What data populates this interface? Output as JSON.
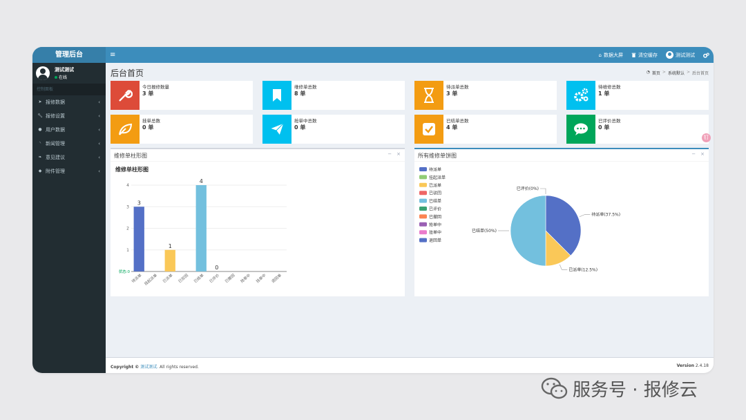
{
  "app": {
    "logo": "管理后台",
    "menu_toggle": "≡"
  },
  "topnav": {
    "items": [
      {
        "icon": "home-icon",
        "label": "数据大屏"
      },
      {
        "icon": "trash-icon",
        "label": "清空缓存"
      },
      {
        "icon": "user-avatar-icon",
        "label": "测试测试"
      },
      {
        "icon": "gears-icon",
        "label": ""
      }
    ]
  },
  "sidebar": {
    "user": {
      "name": "测试测试",
      "status": "在线"
    },
    "nav_header": "控制面板",
    "items": [
      {
        "icon": "paper-plane-icon",
        "label": "报修数据"
      },
      {
        "icon": "wrench-icon",
        "label": "报修设置"
      },
      {
        "icon": "user-icon",
        "label": "用户数据"
      },
      {
        "icon": "rss-icon",
        "label": "新闻管理"
      },
      {
        "icon": "leaf-icon",
        "label": "意见建议"
      },
      {
        "icon": "tag-icon",
        "label": "附件管理"
      }
    ]
  },
  "page": {
    "title": "后台首页",
    "breadcrumb": [
      "首页",
      "系统默认",
      "后台首页"
    ]
  },
  "stats": [
    {
      "label": "今日报修数量",
      "value": "3 单",
      "color": "#dd4b39",
      "icon": "wrench-icon"
    },
    {
      "label": "维修单总数",
      "value": "8 单",
      "color": "#00c0ef",
      "icon": "bookmark-icon"
    },
    {
      "label": "待派单总数",
      "value": "3 单",
      "color": "#f39c12",
      "icon": "hourglass-icon"
    },
    {
      "label": "待维修总数",
      "value": "1 单",
      "color": "#00c0ef",
      "icon": "gears-icon"
    },
    {
      "label": "挂单总数",
      "value": "0 单",
      "color": "#f39c12",
      "icon": "leaf-icon"
    },
    {
      "label": "抢单中总数",
      "value": "0 单",
      "color": "#00c0ef",
      "icon": "paper-plane-icon"
    },
    {
      "label": "已结单总数",
      "value": "4 单",
      "color": "#f39c12",
      "icon": "check-square-icon"
    },
    {
      "label": "已评价总数",
      "value": "0 单",
      "color": "#00a65a",
      "icon": "comment-icon"
    }
  ],
  "bar_panel": {
    "title": "维修单柱形图",
    "tool_min": "−",
    "tool_close": "×"
  },
  "pie_panel": {
    "title": "所有维修单饼图",
    "tool_min": "−",
    "tool_close": "×"
  },
  "chart_data": [
    {
      "type": "bar",
      "title": "维修单柱形图",
      "xlabel": "",
      "ylabel": "",
      "categories": [
        "待派单",
        "挂起派单",
        "已派单",
        "已驳回",
        "已结单",
        "已评价",
        "已撤回",
        "抢单中",
        "挂单中",
        "退回单"
      ],
      "values": [
        3,
        0,
        1,
        0,
        4,
        0,
        0,
        0,
        0,
        0
      ],
      "colors": [
        "#5470c6",
        "#91cc75",
        "#fac858",
        "#ee6666",
        "#73c0de",
        "#3ba272",
        "#fc8452",
        "#9a60b4",
        "#ea7ccc",
        "#5470c6"
      ],
      "value_labels": [
        "3",
        "",
        "1",
        "",
        "4",
        "0",
        "",
        "",
        "",
        ""
      ],
      "axis_corner_label": "状态:0",
      "ylim": [
        0,
        4
      ],
      "yticks": [
        0,
        1,
        2,
        3,
        4
      ],
      "grid": true
    },
    {
      "type": "pie",
      "title": "所有维修单饼图",
      "legend": [
        "待派单",
        "挂起派单",
        "已派单",
        "已驳回",
        "已结单",
        "已评价",
        "已撤回",
        "抢单中",
        "挂单中",
        "退回单"
      ],
      "legend_colors": [
        "#5470c6",
        "#91cc75",
        "#fac858",
        "#ee6666",
        "#73c0de",
        "#3ba272",
        "#fc8452",
        "#9a60b4",
        "#ea7ccc",
        "#5470c6"
      ],
      "legend_position": "top-left",
      "slices": [
        {
          "name": "待派单",
          "value": 37.5,
          "label": "待派单(37.5%)",
          "color": "#5470c6"
        },
        {
          "name": "已派单",
          "value": 12.5,
          "label": "已派单(12.5%)",
          "color": "#fac858"
        },
        {
          "name": "已结单",
          "value": 50,
          "label": "已结单(50%)",
          "color": "#73c0de"
        },
        {
          "name": "已评价",
          "value": 0,
          "label": "已评价(0%)",
          "color": "#3ba272"
        }
      ]
    }
  ],
  "footer": {
    "copyright_prefix": "Copyright ©",
    "copyright_link": "测试测试.",
    "copyright_suffix": "All rights reserved.",
    "version_label": "Version",
    "version_value": "2.4.18"
  },
  "float_button": {
    "label": "钉"
  },
  "watermark": {
    "text": "服务号 · 报修云"
  }
}
